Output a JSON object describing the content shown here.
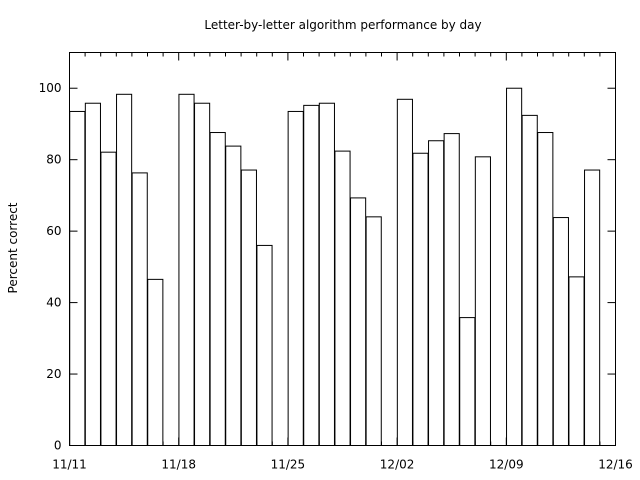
{
  "chart_data": {
    "type": "bar",
    "title": "Letter-by-letter algorithm performance by day",
    "xlabel": "",
    "ylabel": "Percent correct",
    "ylim": [
      0,
      110
    ],
    "y_ticks": [
      0,
      20,
      40,
      60,
      80,
      100
    ],
    "x_tick_labels": [
      "11/11",
      "11/18",
      "11/25",
      "12/02",
      "12/09",
      "12/16"
    ],
    "grid": false,
    "x": [
      "11/11",
      "11/12",
      "11/13",
      "11/14",
      "11/15",
      "11/16",
      "11/17",
      "11/18",
      "11/19",
      "11/20",
      "11/21",
      "11/22",
      "11/23",
      "11/24",
      "11/25",
      "11/26",
      "11/27",
      "11/28",
      "11/29",
      "11/30",
      "12/01",
      "12/02",
      "12/03",
      "12/04",
      "12/05",
      "12/06",
      "12/07",
      "12/08",
      "12/09",
      "12/10",
      "12/11",
      "12/12",
      "12/13",
      "12/14",
      "12/15",
      "12/16"
    ],
    "values": [
      93.5,
      95.8,
      82.1,
      98.3,
      76.3,
      46.5,
      null,
      98.3,
      95.8,
      87.6,
      83.8,
      77.1,
      56.0,
      null,
      93.5,
      95.2,
      95.8,
      82.4,
      69.3,
      64.0,
      null,
      96.9,
      81.8,
      85.3,
      87.3,
      35.8,
      80.8,
      null,
      100.0,
      92.4,
      87.6,
      63.8,
      47.2,
      77.1,
      null,
      null
    ]
  }
}
